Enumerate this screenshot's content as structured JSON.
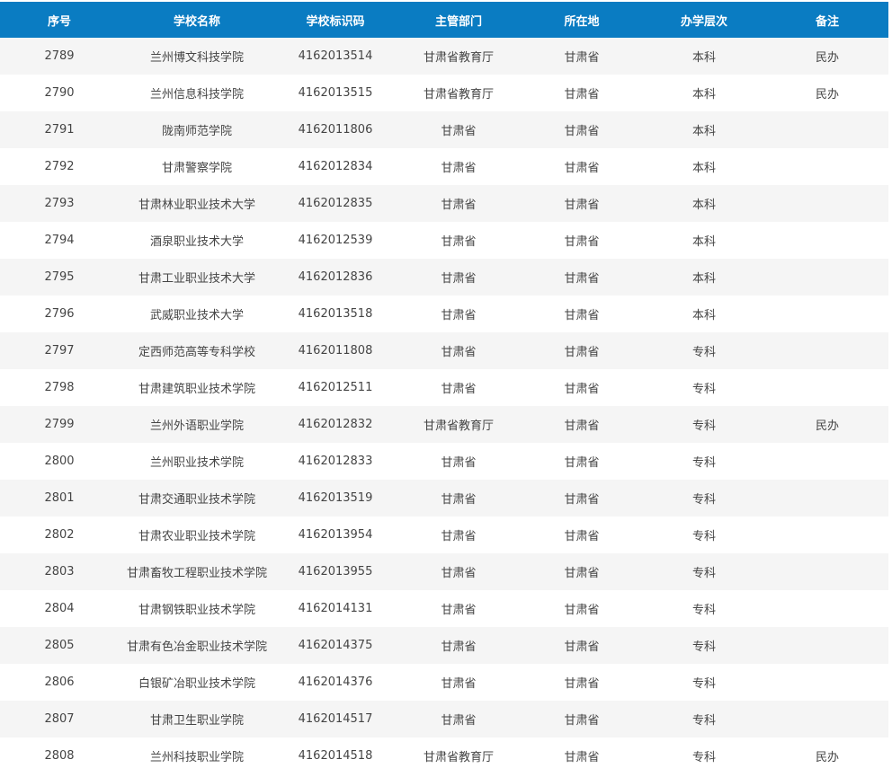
{
  "table": {
    "headers": [
      "序号",
      "学校名称",
      "学校标识码",
      "主管部门",
      "所在地",
      "办学层次",
      "备注"
    ],
    "rows": [
      [
        "2789",
        "兰州博文科技学院",
        "4162013514",
        "甘肃省教育厅",
        "甘肃省",
        "本科",
        "民办"
      ],
      [
        "2790",
        "兰州信息科技学院",
        "4162013515",
        "甘肃省教育厅",
        "甘肃省",
        "本科",
        "民办"
      ],
      [
        "2791",
        "陇南师范学院",
        "4162011806",
        "甘肃省",
        "甘肃省",
        "本科",
        ""
      ],
      [
        "2792",
        "甘肃警察学院",
        "4162012834",
        "甘肃省",
        "甘肃省",
        "本科",
        ""
      ],
      [
        "2793",
        "甘肃林业职业技术大学",
        "4162012835",
        "甘肃省",
        "甘肃省",
        "本科",
        ""
      ],
      [
        "2794",
        "酒泉职业技术大学",
        "4162012539",
        "甘肃省",
        "甘肃省",
        "本科",
        ""
      ],
      [
        "2795",
        "甘肃工业职业技术大学",
        "4162012836",
        "甘肃省",
        "甘肃省",
        "本科",
        ""
      ],
      [
        "2796",
        "武威职业技术大学",
        "4162013518",
        "甘肃省",
        "甘肃省",
        "本科",
        ""
      ],
      [
        "2797",
        "定西师范高等专科学校",
        "4162011808",
        "甘肃省",
        "甘肃省",
        "专科",
        ""
      ],
      [
        "2798",
        "甘肃建筑职业技术学院",
        "4162012511",
        "甘肃省",
        "甘肃省",
        "专科",
        ""
      ],
      [
        "2799",
        "兰州外语职业学院",
        "4162012832",
        "甘肃省教育厅",
        "甘肃省",
        "专科",
        "民办"
      ],
      [
        "2800",
        "兰州职业技术学院",
        "4162012833",
        "甘肃省",
        "甘肃省",
        "专科",
        ""
      ],
      [
        "2801",
        "甘肃交通职业技术学院",
        "4162013519",
        "甘肃省",
        "甘肃省",
        "专科",
        ""
      ],
      [
        "2802",
        "甘肃农业职业技术学院",
        "4162013954",
        "甘肃省",
        "甘肃省",
        "专科",
        ""
      ],
      [
        "2803",
        "甘肃畜牧工程职业技术学院",
        "4162013955",
        "甘肃省",
        "甘肃省",
        "专科",
        ""
      ],
      [
        "2804",
        "甘肃钢铁职业技术学院",
        "4162014131",
        "甘肃省",
        "甘肃省",
        "专科",
        ""
      ],
      [
        "2805",
        "甘肃有色冶金职业技术学院",
        "4162014375",
        "甘肃省",
        "甘肃省",
        "专科",
        ""
      ],
      [
        "2806",
        "白银矿冶职业技术学院",
        "4162014376",
        "甘肃省",
        "甘肃省",
        "专科",
        ""
      ],
      [
        "2807",
        "甘肃卫生职业学院",
        "4162014517",
        "甘肃省",
        "甘肃省",
        "专科",
        ""
      ],
      [
        "2808",
        "兰州科技职业学院",
        "4162014518",
        "甘肃省教育厅",
        "甘肃省",
        "专科",
        "民办"
      ]
    ]
  },
  "colors": {
    "header_bg": "#0a7cc2",
    "row_alt": "#f5f5f5",
    "text": "#444444"
  }
}
